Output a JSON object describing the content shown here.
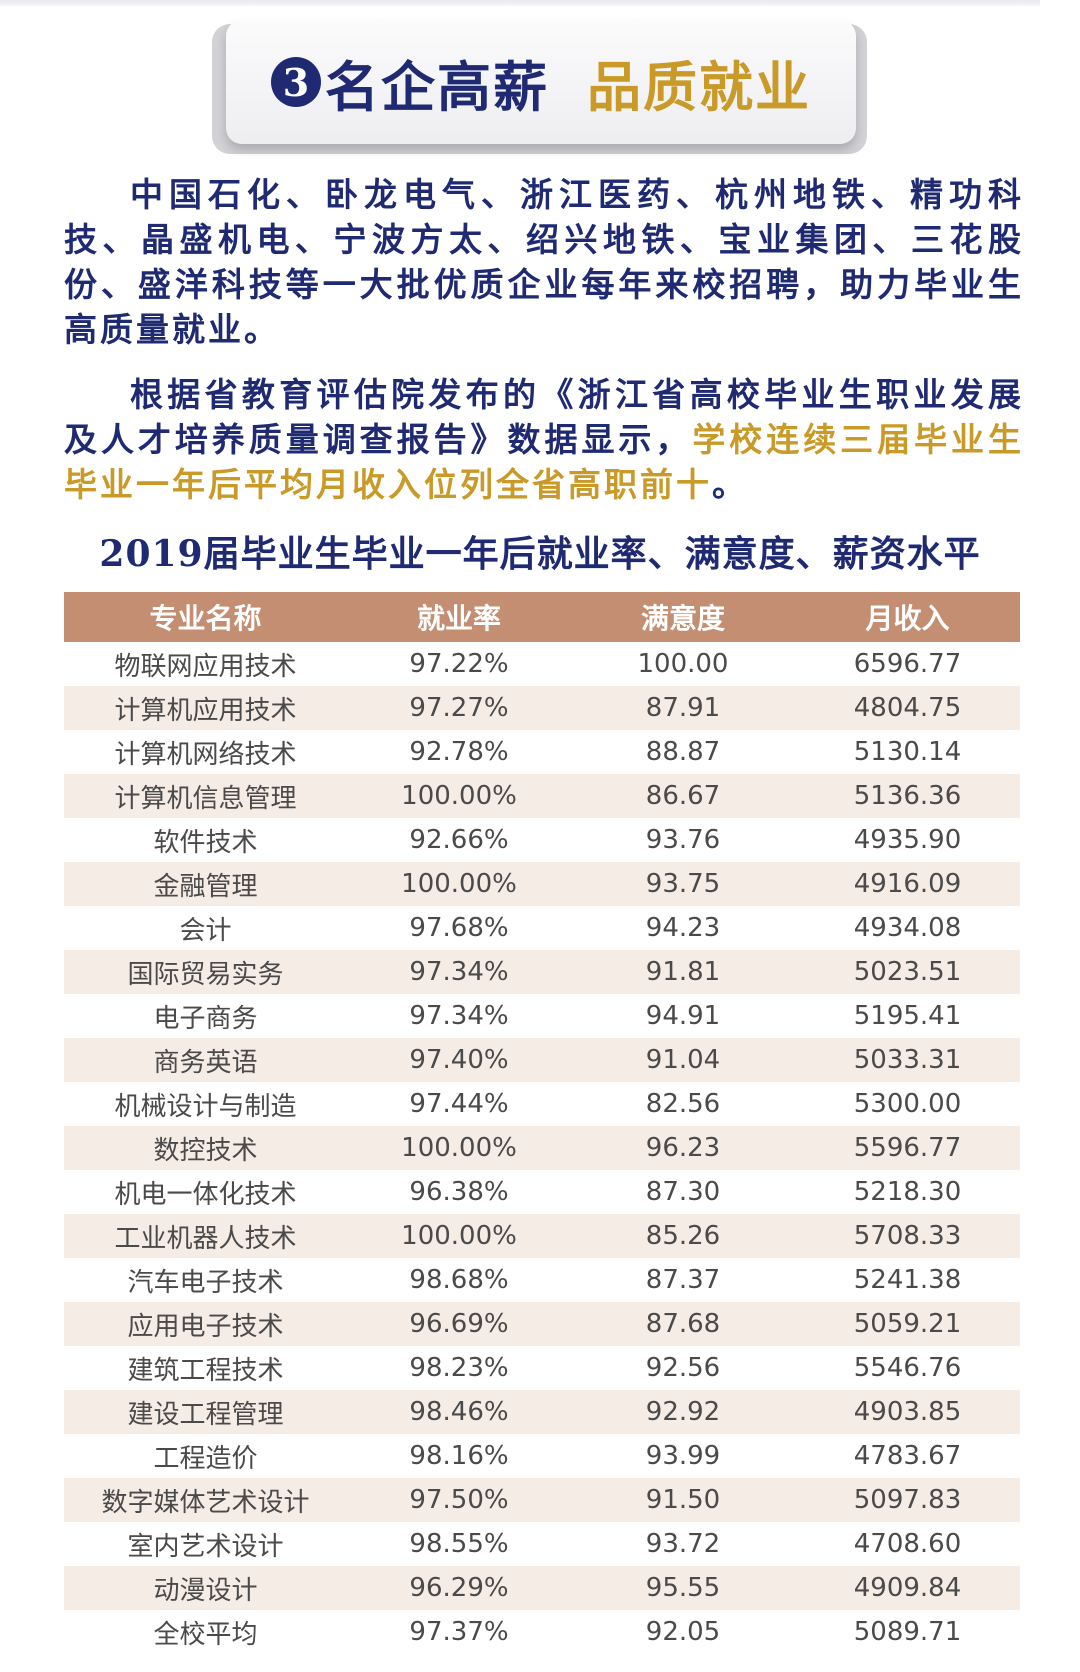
{
  "banner": {
    "number": "3",
    "title_part1": "名企高薪",
    "title_part2": "品质就业",
    "number_color": "#1f2a73",
    "gold_color": "#c99a28"
  },
  "paragraph1": "中国石化、卧龙电气、浙江医药、杭州地铁、精功科技、晶盛机电、宁波方太、绍兴地铁、宝业集团、三花股份、盛洋科技等一大批优质企业每年来校招聘，助力毕业生高质量就业。",
  "paragraph2": {
    "normal": "根据省教育评估院发布的《浙江省高校毕业生职业发展及人才培养质量调查报告》数据显示，",
    "highlight": "学校连续三届毕业生毕业一年后平均月收入位列全省高职前十",
    "end": "。"
  },
  "table": {
    "title": "2019届毕业生毕业一年后就业率、满意度、薪资水平",
    "header_color": "#c38e72",
    "stripe_color": "#f6ece6",
    "columns": [
      "专业名称",
      "就业率",
      "满意度",
      "月收入"
    ],
    "rows": [
      [
        "物联网应用技术",
        "97.22%",
        "100.00",
        "6596.77"
      ],
      [
        "计算机应用技术",
        "97.27%",
        "87.91",
        "4804.75"
      ],
      [
        "计算机网络技术",
        "92.78%",
        "88.87",
        "5130.14"
      ],
      [
        "计算机信息管理",
        "100.00%",
        "86.67",
        "5136.36"
      ],
      [
        "软件技术",
        "92.66%",
        "93.76",
        "4935.90"
      ],
      [
        "金融管理",
        "100.00%",
        "93.75",
        "4916.09"
      ],
      [
        "会计",
        "97.68%",
        "94.23",
        "4934.08"
      ],
      [
        "国际贸易实务",
        "97.34%",
        "91.81",
        "5023.51"
      ],
      [
        "电子商务",
        "97.34%",
        "94.91",
        "5195.41"
      ],
      [
        "商务英语",
        "97.40%",
        "91.04",
        "5033.31"
      ],
      [
        "机械设计与制造",
        "97.44%",
        "82.56",
        "5300.00"
      ],
      [
        "数控技术",
        "100.00%",
        "96.23",
        "5596.77"
      ],
      [
        "机电一体化技术",
        "96.38%",
        "87.30",
        "5218.30"
      ],
      [
        "工业机器人技术",
        "100.00%",
        "85.26",
        "5708.33"
      ],
      [
        "汽车电子技术",
        "98.68%",
        "87.37",
        "5241.38"
      ],
      [
        "应用电子技术",
        "96.69%",
        "87.68",
        "5059.21"
      ],
      [
        "建筑工程技术",
        "98.23%",
        "92.56",
        "5546.76"
      ],
      [
        "建设工程管理",
        "98.46%",
        "92.92",
        "4903.85"
      ],
      [
        "工程造价",
        "98.16%",
        "93.99",
        "4783.67"
      ],
      [
        "数字媒体艺术设计",
        "97.50%",
        "91.50",
        "5097.83"
      ],
      [
        "室内艺术设计",
        "98.55%",
        "93.72",
        "4708.60"
      ],
      [
        "动漫设计",
        "96.29%",
        "95.55",
        "4909.84"
      ],
      [
        "全校平均",
        "97.37%",
        "92.05",
        "5089.71"
      ]
    ]
  }
}
